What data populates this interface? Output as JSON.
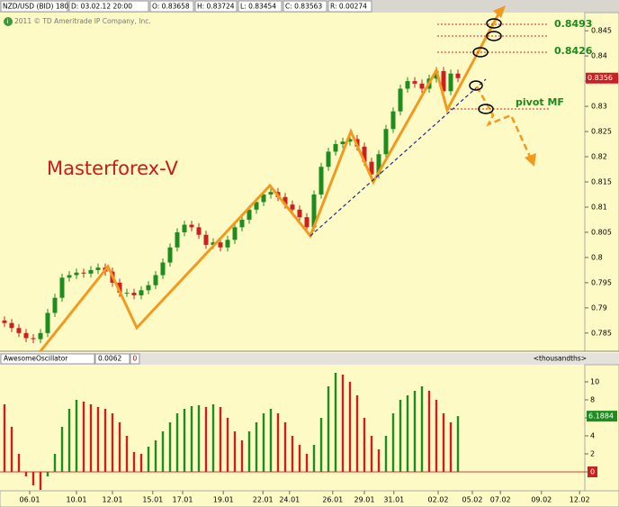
{
  "chart_data": [
    {
      "type": "candlestick",
      "title": "NZD/USD (BID) 180 d 4h",
      "header_fields": [
        "D: 03.02.12 20:00",
        "O: 0.83658",
        "H: 0.83724",
        "L: 0.83454",
        "C: 0.83563",
        "R: 0.00274"
      ],
      "copyright": "2011 © TD Ameritrade IP Company, Inc.",
      "watermark": "Masterforex-V",
      "annotations": [
        "0.8493",
        "0.8426",
        "pivot MF"
      ],
      "up_color": "#1e8c1e",
      "down_color": "#cc2020",
      "xlim": [
        -0.625,
        80.625
      ],
      "ylim": [
        0.7814,
        0.8486
      ],
      "yticks": [
        0.785,
        0.79,
        0.795,
        0.8,
        0.805,
        0.81,
        0.815,
        0.82,
        0.825,
        0.83,
        0.835,
        0.84,
        0.845
      ],
      "open": [
        0.7875,
        0.787,
        0.786,
        0.785,
        0.784,
        0.7838,
        0.785,
        0.789,
        0.792,
        0.796,
        0.7965,
        0.797,
        0.7968,
        0.7975,
        0.798,
        0.7972,
        0.795,
        0.793,
        0.793,
        0.7925,
        0.7935,
        0.7945,
        0.7965,
        0.799,
        0.802,
        0.805,
        0.8065,
        0.806,
        0.8045,
        0.8025,
        0.803,
        0.802,
        0.8035,
        0.806,
        0.8075,
        0.8095,
        0.811,
        0.8125,
        0.813,
        0.812,
        0.8105,
        0.8095,
        0.808,
        0.806,
        0.8125,
        0.818,
        0.821,
        0.8225,
        0.823,
        0.8235,
        0.822,
        0.819,
        0.8165,
        0.8205,
        0.8255,
        0.829,
        0.8335,
        0.835,
        0.8345,
        0.8335,
        0.8355,
        0.837,
        0.833,
        0.8365
      ],
      "high": [
        0.7883,
        0.7878,
        0.7868,
        0.7858,
        0.7848,
        0.7858,
        0.7898,
        0.7928,
        0.7968,
        0.7973,
        0.7978,
        0.7978,
        0.7983,
        0.7988,
        0.7988,
        0.798,
        0.7958,
        0.7938,
        0.7938,
        0.7943,
        0.7953,
        0.7973,
        0.7998,
        0.8028,
        0.8058,
        0.8073,
        0.8073,
        0.8068,
        0.8053,
        0.8038,
        0.8038,
        0.8043,
        0.8068,
        0.8083,
        0.8103,
        0.8118,
        0.8133,
        0.8138,
        0.8138,
        0.8128,
        0.8113,
        0.8103,
        0.8088,
        0.8133,
        0.8188,
        0.8218,
        0.8233,
        0.8238,
        0.8243,
        0.8243,
        0.8228,
        0.8198,
        0.8213,
        0.8263,
        0.8298,
        0.8343,
        0.8358,
        0.8358,
        0.8353,
        0.8363,
        0.8378,
        0.8378,
        0.8373,
        0.8373
      ],
      "low": [
        0.7862,
        0.7852,
        0.7842,
        0.7832,
        0.783,
        0.783,
        0.7842,
        0.7882,
        0.7912,
        0.7952,
        0.7957,
        0.796,
        0.796,
        0.7967,
        0.7964,
        0.7942,
        0.7922,
        0.7922,
        0.7917,
        0.7917,
        0.7927,
        0.7937,
        0.7957,
        0.7982,
        0.8012,
        0.8042,
        0.8052,
        0.8037,
        0.8017,
        0.8017,
        0.8012,
        0.8012,
        0.8027,
        0.8052,
        0.8067,
        0.8087,
        0.8102,
        0.8117,
        0.8112,
        0.8097,
        0.8087,
        0.8072,
        0.8052,
        0.8052,
        0.8117,
        0.8172,
        0.8202,
        0.8217,
        0.8222,
        0.8212,
        0.8182,
        0.8157,
        0.8157,
        0.8197,
        0.8247,
        0.8282,
        0.8327,
        0.8337,
        0.8327,
        0.8327,
        0.8347,
        0.8322,
        0.8322,
        0.8348
      ],
      "close": [
        0.787,
        0.786,
        0.785,
        0.784,
        0.7838,
        0.785,
        0.789,
        0.792,
        0.796,
        0.7965,
        0.797,
        0.7968,
        0.7975,
        0.798,
        0.7972,
        0.795,
        0.793,
        0.793,
        0.7925,
        0.7935,
        0.7945,
        0.7965,
        0.799,
        0.802,
        0.805,
        0.8065,
        0.806,
        0.8045,
        0.8025,
        0.803,
        0.802,
        0.8035,
        0.806,
        0.8075,
        0.8095,
        0.811,
        0.8125,
        0.813,
        0.812,
        0.8105,
        0.8095,
        0.808,
        0.806,
        0.8125,
        0.818,
        0.821,
        0.8225,
        0.823,
        0.8235,
        0.822,
        0.819,
        0.8165,
        0.8205,
        0.8255,
        0.829,
        0.8335,
        0.835,
        0.8345,
        0.8335,
        0.8355,
        0.837,
        0.833,
        0.8365,
        0.8356
      ]
    },
    {
      "type": "oscillator",
      "title": "AwesomeOscillator",
      "header_values": [
        "0.0062",
        "0"
      ],
      "unit_label": "<thousandths>",
      "up_color": "#1e8c1e",
      "down_color": "#cc2020",
      "xlim": [
        -0.625,
        80.625
      ],
      "ylim": [
        -2.1,
        11.9
      ],
      "yticks": [
        0,
        2,
        4,
        6,
        8,
        10
      ],
      "xticks": [
        {
          "value": 3.5,
          "label": "06.01"
        },
        {
          "value": 10,
          "label": "10.01"
        },
        {
          "value": 15,
          "label": "12.01"
        },
        {
          "value": 20.6,
          "label": "15.01"
        },
        {
          "value": 24.75,
          "label": "17.01"
        },
        {
          "value": 30.4,
          "label": "19.01"
        },
        {
          "value": 35.9,
          "label": "22.01"
        },
        {
          "value": 39.6,
          "label": "24.01"
        },
        {
          "value": 45.6,
          "label": "26.01"
        },
        {
          "value": 50,
          "label": "29.01"
        },
        {
          "value": 54.1,
          "label": "31.01"
        },
        {
          "value": 60.25,
          "label": "02.02"
        },
        {
          "value": 65,
          "label": "05.02"
        },
        {
          "value": 68.9,
          "label": "07.02"
        },
        {
          "value": 74.6,
          "label": "09.02"
        },
        {
          "value": 79.9,
          "label": "12.02"
        }
      ],
      "values": [
        7.5,
        5,
        2,
        -0.5,
        -1.5,
        -2,
        -0.5,
        2,
        5,
        7,
        8,
        7.8,
        7.5,
        7.2,
        7,
        6.5,
        5.5,
        4,
        2.2,
        2,
        2.8,
        3.5,
        4.5,
        5.5,
        6.5,
        7,
        7.3,
        7.4,
        7.2,
        7.5,
        7.2,
        6,
        4.5,
        3.5,
        4.5,
        5.5,
        6.5,
        7,
        6.5,
        5.5,
        4,
        3,
        2,
        3,
        6,
        9.5,
        11,
        10.8,
        10,
        8.5,
        6,
        4,
        2.5,
        4,
        6.5,
        8,
        8.5,
        9,
        9.5,
        9,
        8,
        6.5,
        5.5,
        6.1884
      ]
    }
  ]
}
